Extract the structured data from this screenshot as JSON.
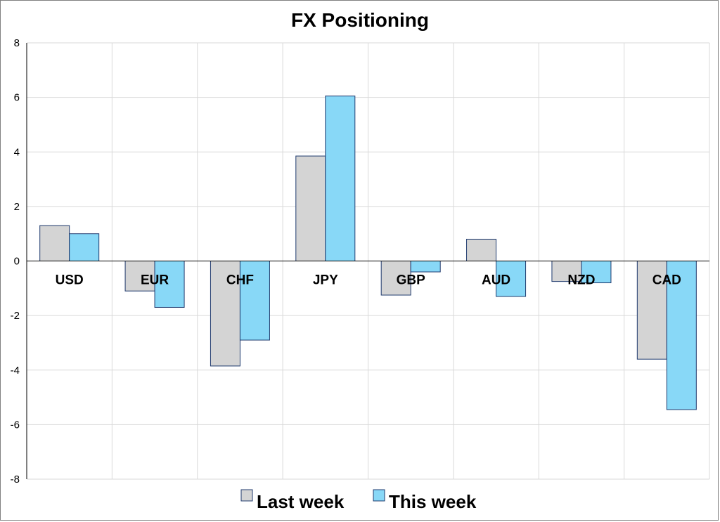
{
  "chart_data": {
    "type": "bar",
    "title": "FX Positioning",
    "categories": [
      "USD",
      "EUR",
      "CHF",
      "JPY",
      "GBP",
      "AUD",
      "NZD",
      "CAD"
    ],
    "series": [
      {
        "name": "Last week",
        "color": "#d4d4d4",
        "values": [
          1.3,
          -1.1,
          -3.85,
          3.85,
          -1.25,
          0.8,
          -0.75,
          -3.6
        ]
      },
      {
        "name": "This week",
        "color": "#88d8f7",
        "values": [
          1.0,
          -1.7,
          -2.9,
          6.05,
          -0.4,
          -1.3,
          -0.8,
          -5.45
        ]
      }
    ],
    "ylim": [
      -8,
      8
    ],
    "yticks": [
      "8",
      "6",
      "4",
      "2",
      "0",
      "-2",
      "-4",
      "-6",
      "-8"
    ],
    "grid": true,
    "legend_position": "bottom",
    "colors": {
      "bar_outline": "#1f3a6e",
      "grid": "#d9d9d9"
    }
  }
}
